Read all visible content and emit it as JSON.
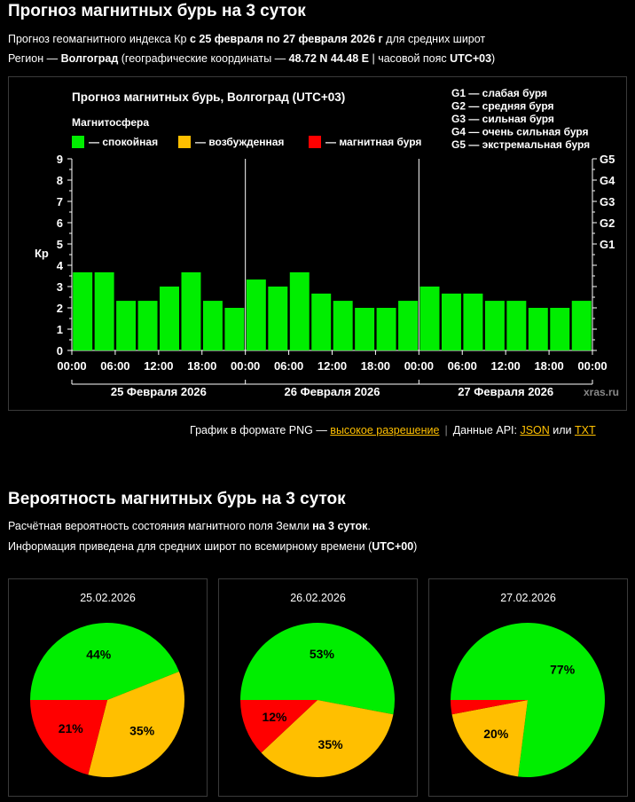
{
  "header": {
    "title": "Прогноз магнитных бурь на 3 суток",
    "line1_pre": "Прогноз геомагнитного индекса Кр ",
    "line1_bold": "с 25 февраля по 27 февраля 2026 г",
    "line1_post": " для средних широт",
    "line2_pre": "Регион — ",
    "line2_region": "Волгоград",
    "line2_mid": " (географические координаты — ",
    "line2_coords": "48.72 N 44.48 E",
    "line2_mid2": " | часовой пояс ",
    "line2_tz": "UTC+03",
    "line2_post": ")"
  },
  "links": {
    "prefix": "График в формате PNG — ",
    "hires": "высокое разрешение",
    "api_prefix": "Данные API: ",
    "json": "JSON",
    "or": " или ",
    "txt": "TXT"
  },
  "section2": {
    "title": "Вероятность магнитных бурь на 3 суток",
    "line1_pre": "Расчётная вероятность состояния магнитного поля Земли ",
    "line1_bold": "на 3 суток",
    "line1_post": ".",
    "line2_pre": "Информация приведена для средних широт по всемирному времени (",
    "line2_bold": "UTC+00",
    "line2_post": ")"
  },
  "colors": {
    "calm": "#00ee00",
    "excited": "#ffbf00",
    "storm": "#ff0000"
  },
  "chart_data": [
    {
      "type": "bar",
      "title": "Прогноз магнитных бурь, Волгоград (UTC+03)",
      "legend_title": "Магнитосфера",
      "legend": [
        "— спокойная",
        "— возбужденная",
        "— магнитная буря"
      ],
      "storm_scale": [
        "G1 — слабая буря",
        "G2 — средняя буря",
        "G3 — сильная буря",
        "G4 — очень сильная буря",
        "G5 — экстремальная буря"
      ],
      "ylabel": "Кр",
      "ylim": [
        0,
        9
      ],
      "yticks": [
        "0",
        "1",
        "2",
        "3",
        "4",
        "5",
        "6",
        "7",
        "8",
        "9"
      ],
      "right_ticks": [
        {
          "value": 5,
          "label": "G1"
        },
        {
          "value": 6,
          "label": "G2"
        },
        {
          "value": 7,
          "label": "G3"
        },
        {
          "value": 8,
          "label": "G4"
        },
        {
          "value": 9,
          "label": "G5"
        }
      ],
      "xticks": [
        "00:00",
        "06:00",
        "12:00",
        "18:00",
        "00:00",
        "06:00",
        "12:00",
        "18:00",
        "00:00",
        "06:00",
        "12:00",
        "18:00",
        "00:00"
      ],
      "days": [
        "25 Февраля 2026",
        "26 Февраля 2026",
        "27 Февраля 2026"
      ],
      "values": [
        3.67,
        3.67,
        2.33,
        2.33,
        3.0,
        3.67,
        2.33,
        2.0,
        3.33,
        3.0,
        3.67,
        2.67,
        2.33,
        2.0,
        2.0,
        2.33,
        3.0,
        2.67,
        2.67,
        2.33,
        2.33,
        2.0,
        2.0,
        2.33
      ],
      "watermark": "xras.ru",
      "grid": false
    },
    {
      "type": "pie",
      "title": "25.02.2026",
      "slices": [
        {
          "label": "44%",
          "value": 44,
          "color": "calm"
        },
        {
          "label": "35%",
          "value": 35,
          "color": "excited"
        },
        {
          "label": "21%",
          "value": 21,
          "color": "storm"
        }
      ]
    },
    {
      "type": "pie",
      "title": "26.02.2026",
      "slices": [
        {
          "label": "53%",
          "value": 53,
          "color": "calm"
        },
        {
          "label": "35%",
          "value": 35,
          "color": "excited"
        },
        {
          "label": "12%",
          "value": 12,
          "color": "storm"
        }
      ]
    },
    {
      "type": "pie",
      "title": "27.02.2026",
      "slices": [
        {
          "label": "77%",
          "value": 77,
          "color": "calm"
        },
        {
          "label": "20%",
          "value": 20,
          "color": "excited"
        },
        {
          "label": "",
          "value": 3,
          "color": "storm"
        }
      ]
    }
  ]
}
